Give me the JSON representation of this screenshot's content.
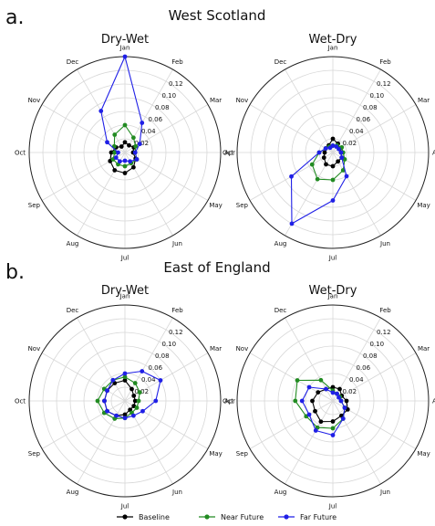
{
  "figure": {
    "panels": [
      {
        "letter": "a.",
        "title": "West Scotland"
      },
      {
        "letter": "b.",
        "title": "East of England"
      }
    ],
    "legend": [
      {
        "label": "Baseline",
        "color": "#000000"
      },
      {
        "label": "Near Future",
        "color": "#228b22"
      },
      {
        "label": "Far Future",
        "color": "#1f1fe6"
      }
    ]
  },
  "chart_data": [
    {
      "type": "polar-line",
      "panel": "a.",
      "region": "West Scotland",
      "title": "Dry-Wet",
      "theta_labels": [
        "Jan",
        "Feb",
        "Mar",
        "Apr",
        "May",
        "Jun",
        "Jul",
        "Aug",
        "Sep",
        "Oct",
        "Nov",
        "Dec"
      ],
      "r_ticks": [
        "0.02",
        "0.04",
        "0.06",
        "0.08",
        "0.10",
        "0.12"
      ],
      "rlim": [
        0,
        0.14
      ],
      "series": [
        {
          "name": "Baseline",
          "color": "#000000",
          "values": [
            0.015,
            0.012,
            0.015,
            0.012,
            0.018,
            0.025,
            0.03,
            0.03,
            0.025,
            0.02,
            0.015,
            0.01
          ]
        },
        {
          "name": "Near Future",
          "color": "#228b22",
          "values": [
            0.04,
            0.025,
            0.018,
            0.015,
            0.02,
            0.018,
            0.02,
            0.02,
            0.02,
            0.015,
            0.018,
            0.03
          ]
        },
        {
          "name": "Far Future",
          "color": "#1f1fe6",
          "values": [
            0.14,
            0.05,
            0.025,
            0.015,
            0.02,
            0.015,
            0.012,
            0.015,
            0.015,
            0.01,
            0.03,
            0.07
          ]
        }
      ]
    },
    {
      "type": "polar-line",
      "panel": "a.",
      "region": "West Scotland",
      "title": "Wet-Dry",
      "theta_labels": [
        "Jan",
        "Feb",
        "Mar",
        "Apr",
        "May",
        "Jun",
        "Jul",
        "Aug",
        "Sep",
        "Oct",
        "Nov",
        "Dec"
      ],
      "r_ticks": [
        "0.02",
        "0.04",
        "0.06",
        "0.08",
        "0.10",
        "0.12"
      ],
      "rlim": [
        0,
        0.14
      ],
      "series": [
        {
          "name": "Baseline",
          "color": "#000000",
          "values": [
            0.02,
            0.015,
            0.012,
            0.012,
            0.015,
            0.015,
            0.02,
            0.02,
            0.015,
            0.012,
            0.012,
            0.012
          ]
        },
        {
          "name": "Near Future",
          "color": "#228b22",
          "values": [
            0.01,
            0.012,
            0.015,
            0.015,
            0.02,
            0.03,
            0.04,
            0.045,
            0.035,
            0.02,
            0.012,
            0.01
          ]
        },
        {
          "name": "Far Future",
          "color": "#1f1fe6",
          "values": [
            0.01,
            0.01,
            0.01,
            0.012,
            0.015,
            0.04,
            0.07,
            0.12,
            0.07,
            0.02,
            0.012,
            0.008
          ]
        }
      ]
    },
    {
      "type": "polar-line",
      "panel": "b.",
      "region": "East of England",
      "title": "Dry-Wet",
      "theta_labels": [
        "Jan",
        "Feb",
        "Mar",
        "Apr",
        "May",
        "Jun",
        "Jul",
        "Aug",
        "Sep",
        "Oct",
        "Nov",
        "Dec"
      ],
      "r_ticks": [
        "0.02",
        "0.04",
        "0.06",
        "0.08",
        "0.10",
        "0.12"
      ],
      "rlim": [
        0,
        0.14
      ],
      "series": [
        {
          "name": "Baseline",
          "color": "#000000",
          "values": [
            0.03,
            0.02,
            0.015,
            0.015,
            0.015,
            0.015,
            0.02,
            0.025,
            0.03,
            0.03,
            0.03,
            0.03
          ]
        },
        {
          "name": "Near Future",
          "color": "#228b22",
          "values": [
            0.035,
            0.03,
            0.025,
            0.02,
            0.02,
            0.02,
            0.025,
            0.03,
            0.035,
            0.04,
            0.035,
            0.035
          ]
        },
        {
          "name": "Far Future",
          "color": "#1f1fe6",
          "values": [
            0.04,
            0.05,
            0.06,
            0.045,
            0.03,
            0.025,
            0.025,
            0.025,
            0.03,
            0.03,
            0.03,
            0.035
          ]
        }
      ]
    },
    {
      "type": "polar-line",
      "panel": "b.",
      "region": "East of England",
      "title": "Wet-Dry",
      "theta_labels": [
        "Jan",
        "Feb",
        "Mar",
        "Apr",
        "May",
        "Jun",
        "Jul",
        "Aug",
        "Sep",
        "Oct",
        "Nov",
        "Dec"
      ],
      "r_ticks": [
        "0.02",
        "0.04",
        "0.06",
        "0.08",
        "0.10",
        "0.12"
      ],
      "rlim": [
        0,
        0.14
      ],
      "series": [
        {
          "name": "Baseline",
          "color": "#000000",
          "values": [
            0.02,
            0.02,
            0.015,
            0.02,
            0.025,
            0.025,
            0.03,
            0.035,
            0.03,
            0.03,
            0.025,
            0.02
          ]
        },
        {
          "name": "Near Future",
          "color": "#228b22",
          "values": [
            0.015,
            0.012,
            0.012,
            0.012,
            0.02,
            0.03,
            0.04,
            0.045,
            0.045,
            0.055,
            0.06,
            0.035
          ]
        },
        {
          "name": "Far Future",
          "color": "#1f1fe6",
          "values": [
            0.012,
            0.012,
            0.01,
            0.012,
            0.02,
            0.03,
            0.05,
            0.05,
            0.04,
            0.045,
            0.04,
            0.02
          ]
        }
      ]
    }
  ]
}
